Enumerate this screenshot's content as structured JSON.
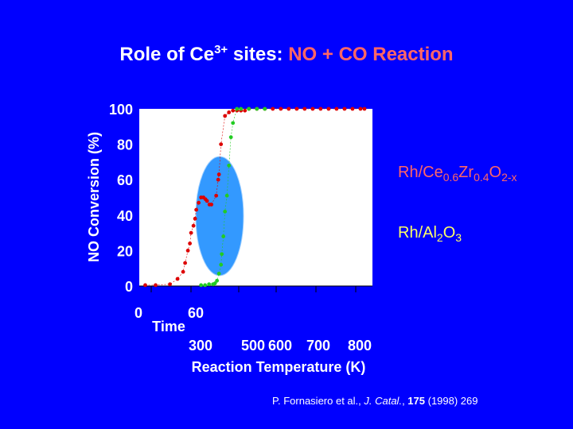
{
  "slide": {
    "title_part1": "Role of Ce",
    "title_sup": "3+",
    "title_part2": " sites: ",
    "title_part3": "NO + CO Reaction",
    "citation": {
      "authors": "P. Fornasiero et al., ",
      "journal": "J. Catal.",
      "sep": ", ",
      "volume": "175",
      "rest": " (1998) 269"
    }
  },
  "labels": {
    "rh_cezr": {
      "p1": "Rh/Ce",
      "s1": "0.6",
      "p2": "Zr",
      "s2": "0.4",
      "p3": "O",
      "s3": "2-x"
    },
    "rh_al": {
      "p1": "Rh/Al",
      "s1": "2",
      "p2": "O",
      "s2": "3"
    }
  },
  "colors": {
    "background": "#0000ff",
    "plot_bg": "#ffffff",
    "series_rh_cezr": "#dd0000",
    "series_rh_al": "#22cc22",
    "ellipse_fill": "#3399ff",
    "title_white": "#ffffff",
    "title_red": "#ff6666",
    "rh_cezr_label": "#ff6666",
    "rh_al_label": "#ffff66"
  },
  "chart_data": {
    "type": "scatter",
    "ylabel": "NO Conversion (%)",
    "ylim": [
      0,
      100
    ],
    "y_ticks": [
      "0",
      "20",
      "40",
      "60",
      "80",
      "100"
    ],
    "time_axis": {
      "label": "Time",
      "ticks": [
        "0",
        "60"
      ]
    },
    "temperature_axis": {
      "label": "Reaction Temperature (K)",
      "ticks": [
        "300",
        "500",
        "600",
        "700",
        "800"
      ]
    },
    "x_domain_note": "x values are positions along the reaction coordinate (time 0-60 then temperature 300-800 K), expressed in K-equivalent",
    "xlim": [
      225,
      810
    ],
    "series": [
      {
        "name": "Rh/Ce0.6Zr0.4O2-x",
        "color": "#dd0000",
        "x": [
          240,
          266,
          302,
          321,
          335,
          340,
          347,
          352,
          355,
          361,
          365,
          368,
          374,
          380,
          386,
          391,
          395,
          401,
          406,
          418,
          423,
          425,
          430,
          440,
          450,
          460,
          470,
          480,
          490,
          500,
          520,
          540,
          560,
          580,
          600,
          620,
          640,
          660,
          680,
          700,
          720,
          740,
          760,
          780,
          790
        ],
        "y": [
          0.5,
          0.5,
          1,
          4,
          8,
          13,
          20,
          24,
          30,
          34,
          38,
          43,
          47,
          50,
          50,
          49,
          48,
          46,
          46,
          51,
          60,
          63,
          80,
          96,
          98,
          99,
          99,
          99,
          99,
          100,
          100,
          100,
          100,
          100,
          100,
          100,
          100,
          100,
          100,
          100,
          100,
          100,
          100,
          100,
          100
        ]
      },
      {
        "name": "Rh/Al2O3",
        "color": "#22cc22",
        "x": [
          380,
          390,
          400,
          410,
          415,
          420,
          425,
          430,
          432,
          436,
          440,
          445,
          450,
          455,
          460,
          470,
          480,
          500,
          520,
          540
        ],
        "y": [
          0.5,
          0.5,
          1,
          1,
          1.5,
          3,
          7,
          12,
          18,
          28,
          42,
          51,
          68,
          84,
          92,
          100,
          100,
          100,
          100,
          100
        ]
      }
    ],
    "annotation": "ellipse highlighting 340-410 region",
    "grid": false,
    "legend": "none"
  }
}
